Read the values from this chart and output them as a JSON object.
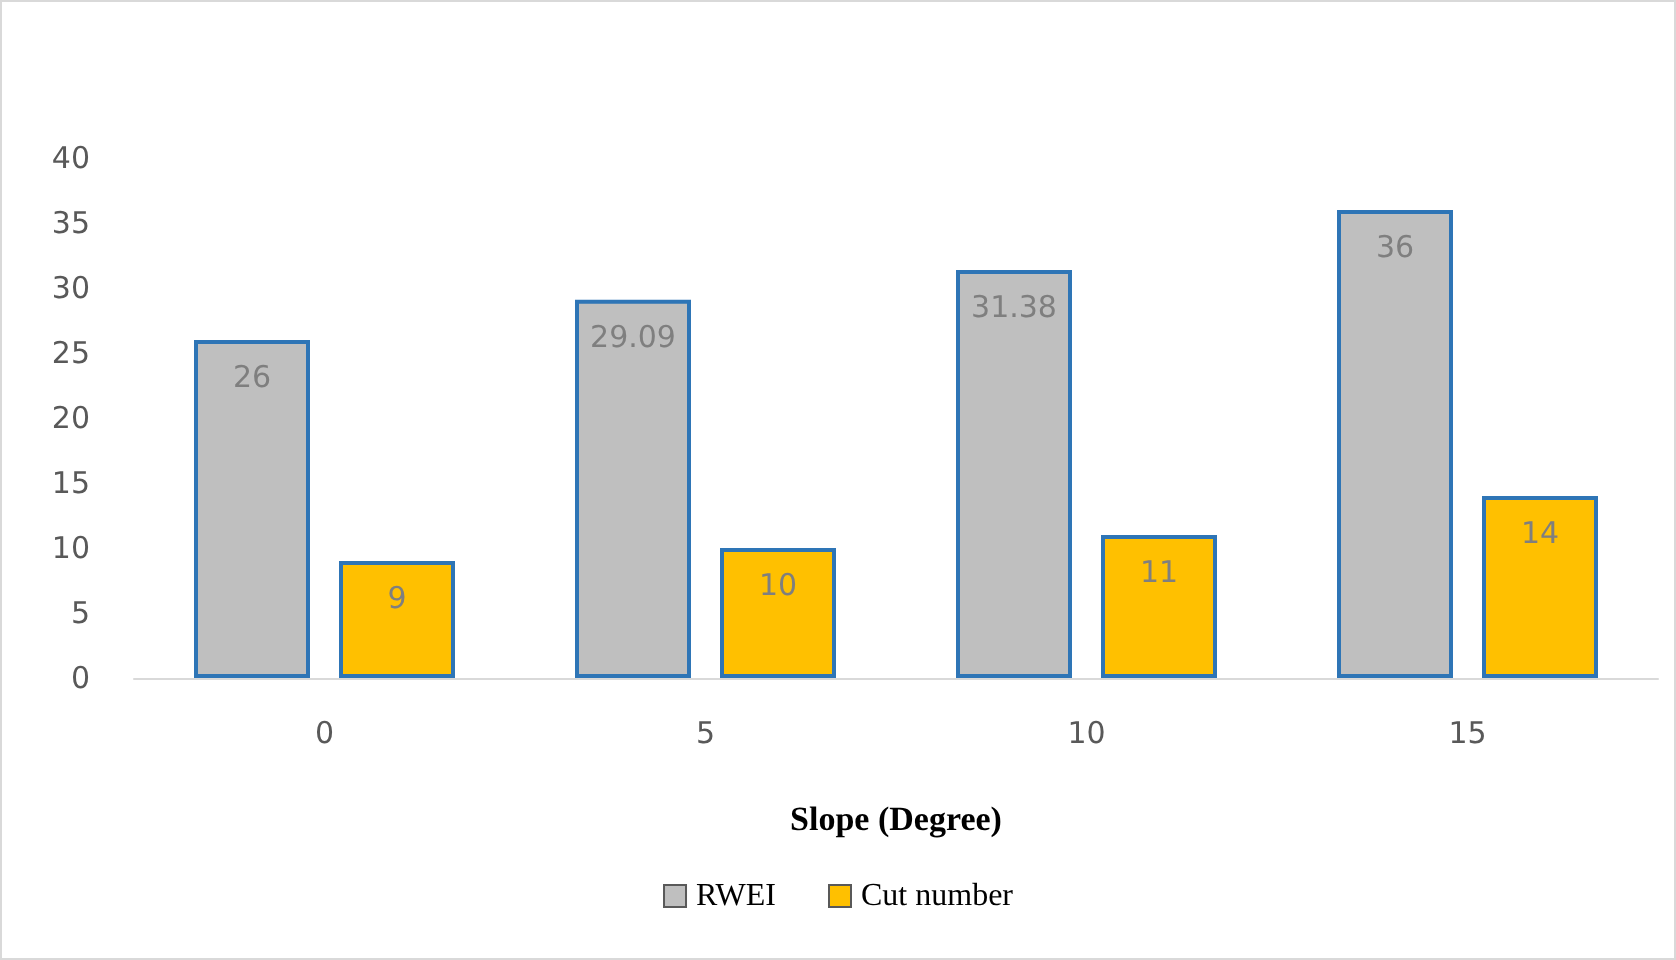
{
  "chart_data": {
    "type": "bar",
    "xlabel": "Slope (Degree)",
    "categories": [
      "0",
      "5",
      "10",
      "15"
    ],
    "series": [
      {
        "name": "RWEI",
        "color": "#bfbfbf",
        "values": [
          26,
          29.09,
          31.38,
          36
        ]
      },
      {
        "name": "Cut number",
        "color": "#ffc000",
        "values": [
          9,
          10,
          11,
          14
        ]
      }
    ],
    "ylim": [
      0,
      40
    ],
    "yticks": [
      0,
      5,
      10,
      15,
      20,
      25,
      30,
      35,
      40
    ],
    "grid": false,
    "legend": "bottom",
    "data_labels": true
  }
}
